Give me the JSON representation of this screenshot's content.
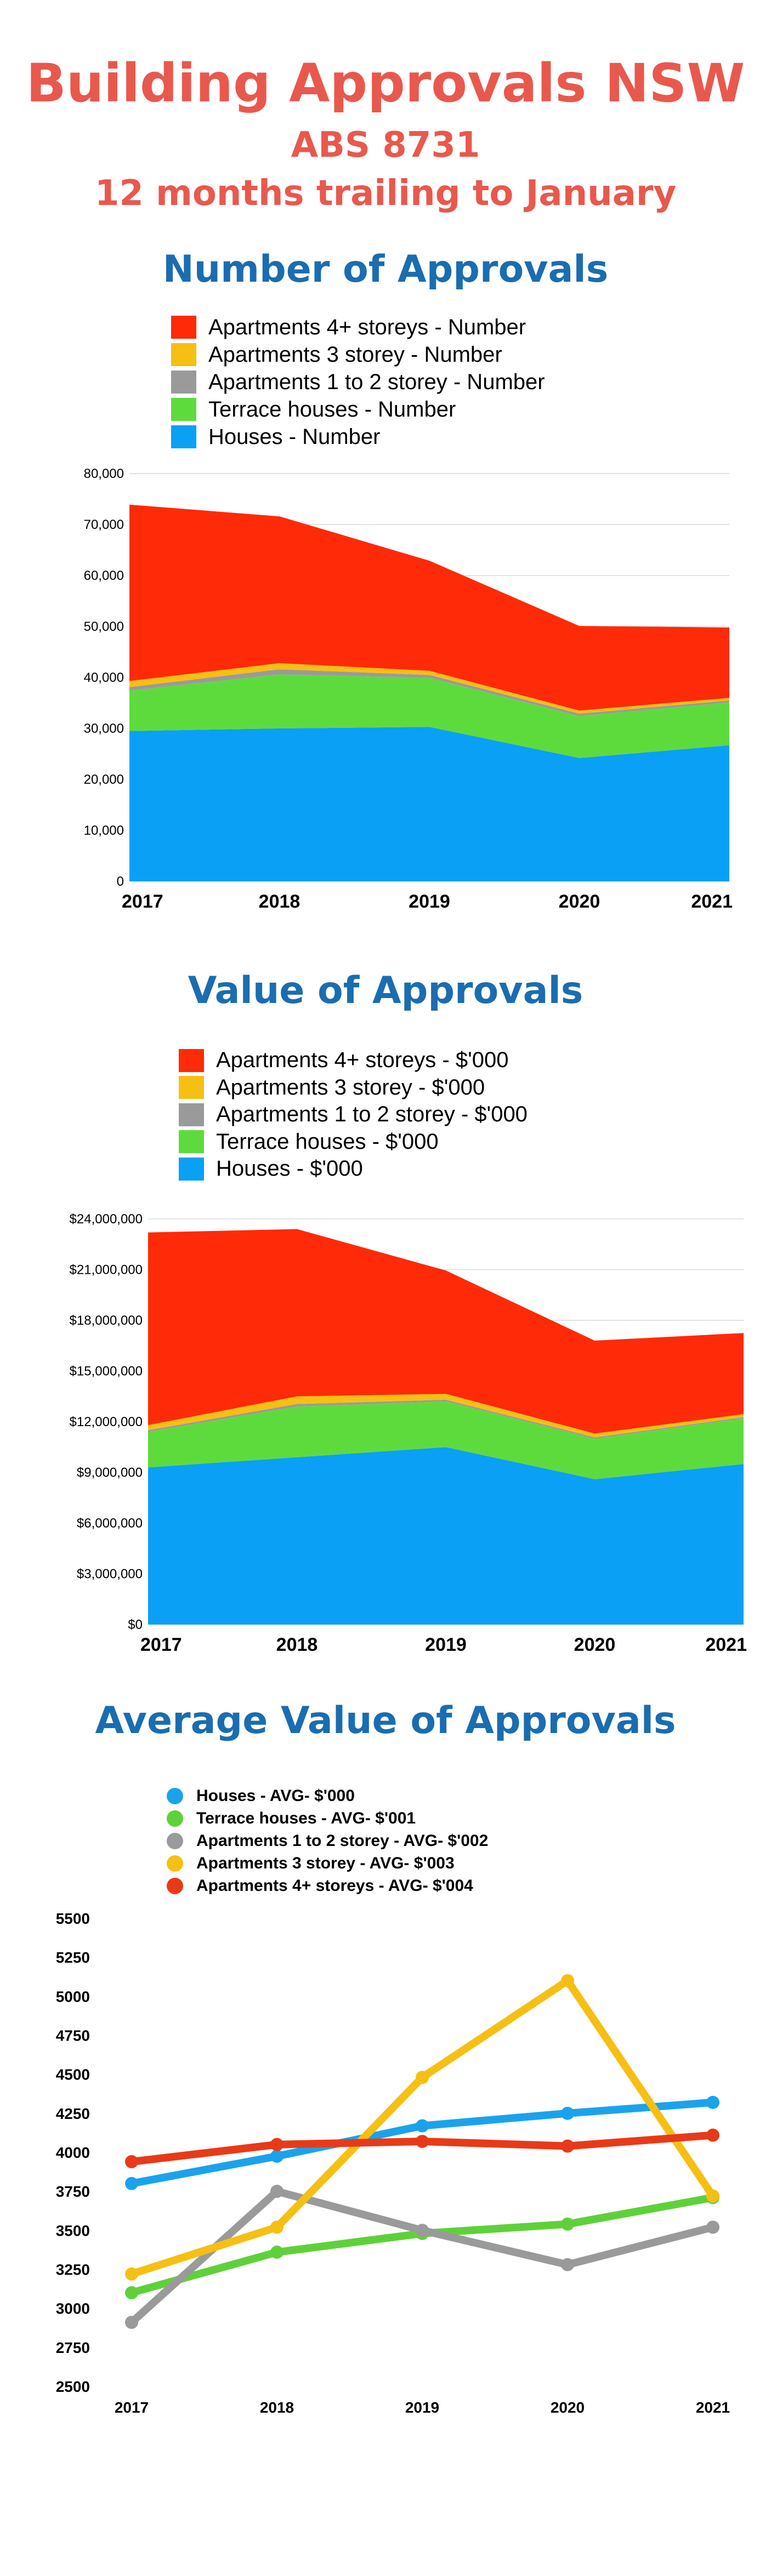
{
  "header": {
    "title": "Building Approvals NSW",
    "subtitle1": "ABS 8731",
    "subtitle2": "12 months trailing to January"
  },
  "chart_data": [
    {
      "type": "area",
      "stacked": true,
      "title": "Number of Approvals",
      "x": [
        "2017",
        "2018",
        "2019",
        "2020",
        "2021"
      ],
      "ylim": [
        0,
        80000
      ],
      "yticks": [
        "0",
        "10,000",
        "20,000",
        "30,000",
        "40,000",
        "50,000",
        "60,000",
        "70,000",
        "80,000"
      ],
      "grid": true,
      "legend": "top",
      "series": [
        {
          "name": "Houses - Number",
          "color": "#0aa0f5",
          "values": [
            29500,
            30000,
            30300,
            24200,
            26700
          ]
        },
        {
          "name": "Terrace houses - Number",
          "color": "#5edb3c",
          "values": [
            7900,
            10600,
            9600,
            8200,
            8400
          ]
        },
        {
          "name": "Apartments 1 to 2 storey - Number",
          "color": "#9a9a9a",
          "values": [
            700,
            1000,
            600,
            500,
            400
          ]
        },
        {
          "name": "Apartments 3 storey - Number",
          "color": "#f6bf14",
          "values": [
            1200,
            1200,
            800,
            600,
            500
          ]
        },
        {
          "name": "Apartments 4+ storeys - Number",
          "color": "#ff2a07",
          "values": [
            34600,
            28800,
            21600,
            16600,
            13800
          ]
        }
      ]
    },
    {
      "type": "area",
      "stacked": true,
      "title": "Value of Approvals",
      "x": [
        "2017",
        "2018",
        "2019",
        "2020",
        "2021"
      ],
      "ylim": [
        0,
        24000000
      ],
      "yticks": [
        "$0",
        "$3,000,000",
        "$6,000,000",
        "$9,000,000",
        "$12,000,000",
        "$15,000,000",
        "$18,000,000",
        "$21,000,000",
        "$24,000,000"
      ],
      "grid": true,
      "legend": "top",
      "series": [
        {
          "name": "Houses  - $'000",
          "color": "#0aa0f5",
          "values": [
            9300000,
            9900000,
            10500000,
            8600000,
            9500000
          ]
        },
        {
          "name": "Terrace houses  - $'000",
          "color": "#5edb3c",
          "values": [
            2100000,
            3000000,
            2700000,
            2400000,
            2700000
          ]
        },
        {
          "name": "Apartments 1 to 2 storey  - $'000",
          "color": "#9a9a9a",
          "values": [
            100000,
            150000,
            100000,
            80000,
            70000
          ]
        },
        {
          "name": "Apartments 3 storey  - $'000",
          "color": "#f6bf14",
          "values": [
            300000,
            450000,
            350000,
            220000,
            180000
          ]
        },
        {
          "name": "Apartments 4+ storeys  - $'000",
          "color": "#ff2a07",
          "values": [
            11400000,
            9900000,
            7300000,
            5500000,
            4800000
          ]
        }
      ]
    },
    {
      "type": "line",
      "title": "Average Value of Approvals",
      "x": [
        "2017",
        "2018",
        "2019",
        "2020",
        "2021"
      ],
      "ylim": [
        2500,
        5500
      ],
      "yticks": [
        "2500",
        "2750",
        "3000",
        "3250",
        "3500",
        "3750",
        "4000",
        "4250",
        "4500",
        "4750",
        "5000",
        "5250",
        "5500"
      ],
      "grid": false,
      "legend": "top",
      "series": [
        {
          "name": "Houses  - AVG- $'000",
          "color": "#1aa3ec",
          "values": [
            3800,
            3975,
            4170,
            4250,
            4320
          ]
        },
        {
          "name": "Terrace houses  - AVG- $'001",
          "color": "#5ed13a",
          "values": [
            3100,
            3360,
            3480,
            3540,
            3710
          ]
        },
        {
          "name": "Apartments 1 to 2 storey  - AVG- $'002",
          "color": "#9a9a9a",
          "values": [
            2910,
            3750,
            3500,
            3280,
            3520
          ]
        },
        {
          "name": "Apartments 3 storey  - AVG- $'003",
          "color": "#f6bf14",
          "values": [
            3220,
            3520,
            4480,
            5100,
            3720
          ]
        },
        {
          "name": "Apartments 4+ storeys  - AVG- $'004",
          "color": "#e83a18",
          "values": [
            3940,
            4050,
            4070,
            4040,
            4110
          ]
        }
      ]
    }
  ]
}
